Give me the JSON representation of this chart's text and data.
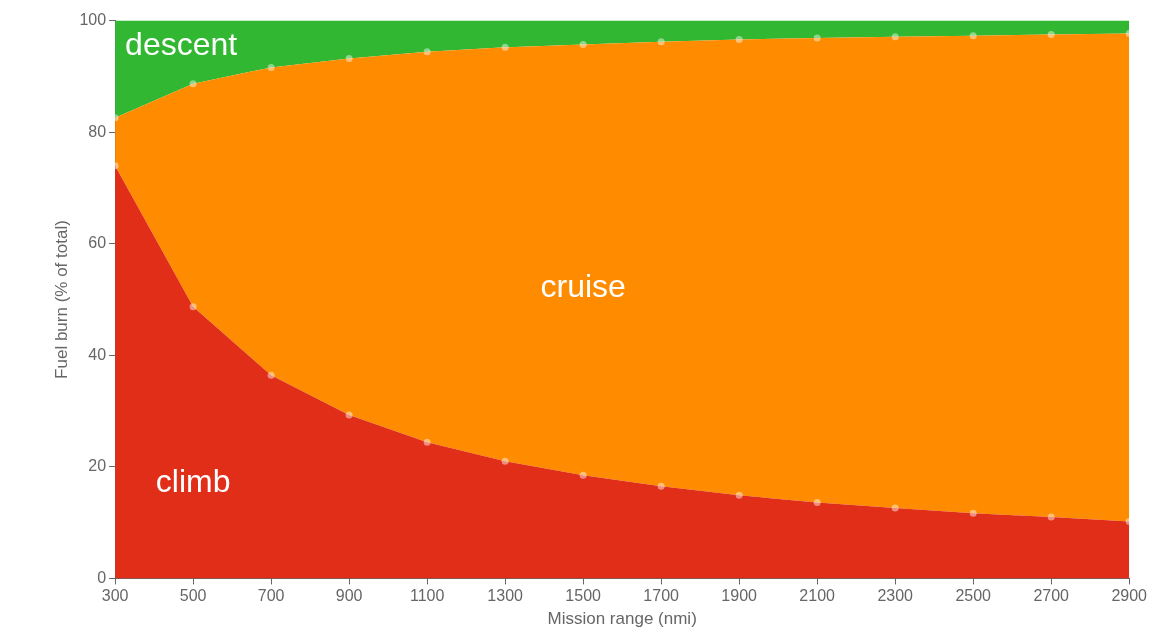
{
  "chart_data": {
    "type": "area",
    "stacked": true,
    "xlabel": "Mission range (nmi)",
    "ylabel": "Fuel burn (% of total)",
    "x": [
      300,
      500,
      700,
      900,
      1100,
      1300,
      1500,
      1700,
      1900,
      2100,
      2300,
      2500,
      2700,
      2900
    ],
    "series": [
      {
        "name": "climb",
        "color": "#e02e18",
        "values": [
          74.0,
          48.7,
          36.4,
          29.3,
          24.4,
          21.0,
          18.5,
          16.5,
          14.9,
          13.6,
          12.6,
          11.7,
          11.0,
          10.2
        ]
      },
      {
        "name": "cruise",
        "color": "#ff8c00",
        "values": [
          8.6,
          40.0,
          55.2,
          63.9,
          70.0,
          74.2,
          77.2,
          79.7,
          81.7,
          83.3,
          84.5,
          85.6,
          86.5,
          87.5
        ]
      },
      {
        "name": "descent",
        "color": "#31b731",
        "marker": "none",
        "values": [
          17.4,
          11.3,
          8.4,
          6.8,
          5.6,
          4.8,
          4.3,
          3.8,
          3.4,
          3.1,
          2.9,
          2.7,
          2.5,
          2.3
        ]
      }
    ],
    "xlim": [
      300,
      2900
    ],
    "xticks": [
      300,
      500,
      700,
      900,
      1100,
      1300,
      1500,
      1700,
      1900,
      2100,
      2300,
      2500,
      2700,
      2900
    ],
    "ylim": [
      0,
      100
    ],
    "yticks": [
      0,
      20,
      40,
      60,
      80,
      100
    ],
    "grid": false,
    "legend": false,
    "marker": "circle"
  }
}
